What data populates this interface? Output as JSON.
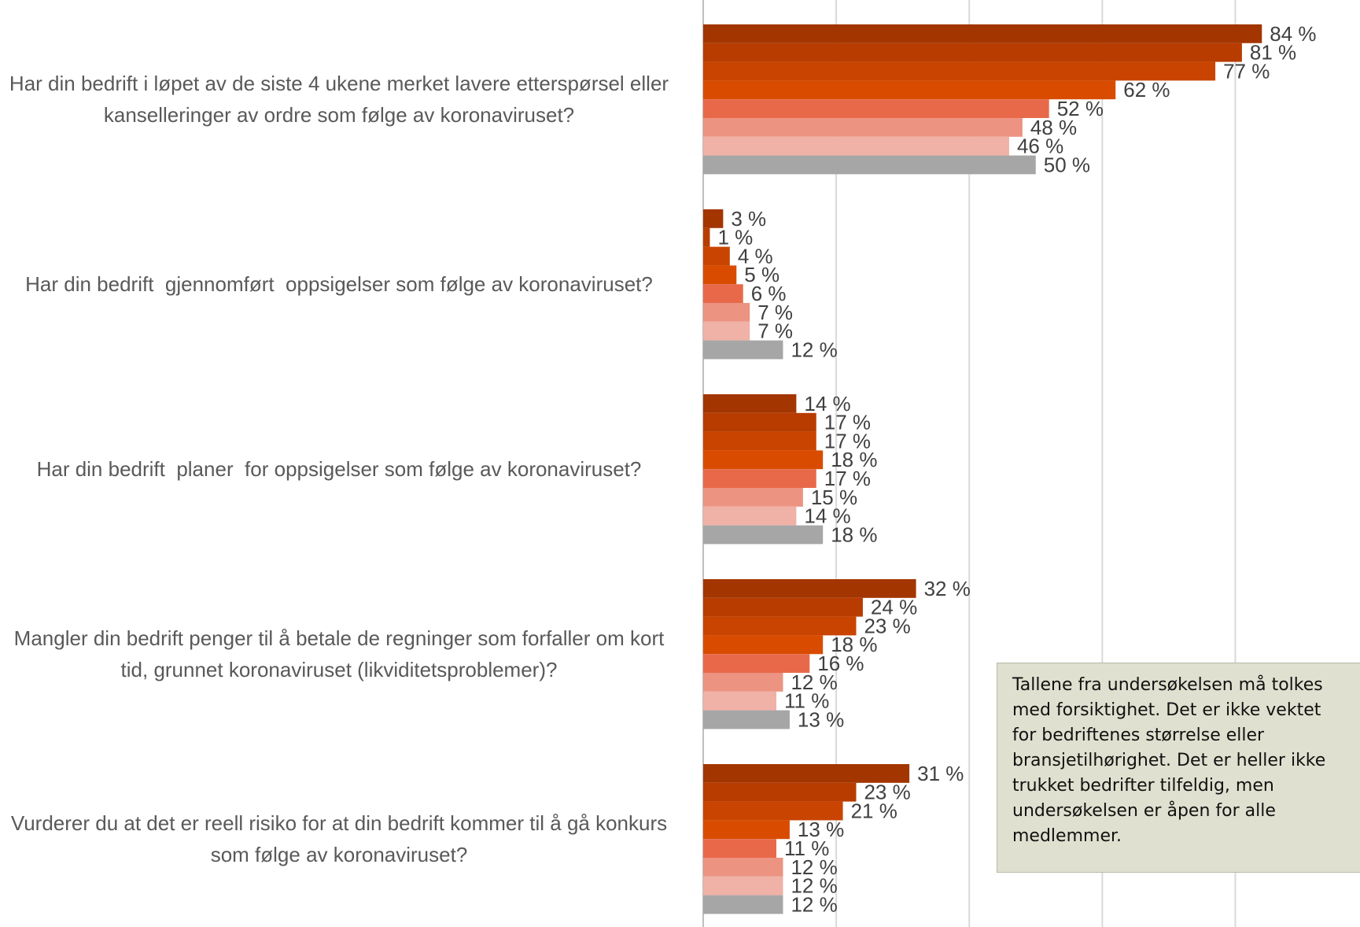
{
  "chart_data": {
    "type": "barh",
    "categories": [
      "Har din bedrift i løpet av de siste 4 ukene merket lavere etterspørsel eller kanselleringer av ordre som følge av koronaviruset?",
      "Har din bedrift  gjennomført  oppsigelser som følge av koronaviruset?",
      "Har din bedrift  planer  for oppsigelser som følge av koronaviruset?",
      "Mangler din bedrift penger til å betale de regninger som forfaller om kort tid, grunnet koronaviruset (likviditetsproblemer)?",
      "Vurderer du at det er reell risiko for at din bedrift kommer til å gå konkurs som følge av koronaviruset?"
    ],
    "series": [
      {
        "color": "#a33500",
        "values": [
          84,
          3,
          14,
          32,
          31
        ],
        "value_labels": [
          "84 %",
          "3 %",
          "14 %",
          "32 %",
          "31 %"
        ]
      },
      {
        "color": "#b83c00",
        "values": [
          81,
          1,
          17,
          24,
          23
        ],
        "value_labels": [
          "81 %",
          "1 %",
          "17 %",
          "24 %",
          "23 %"
        ]
      },
      {
        "color": "#c94400",
        "values": [
          77,
          4,
          17,
          23,
          21
        ],
        "value_labels": [
          "77 %",
          "4 %",
          "17 %",
          "23 %",
          "21 %"
        ]
      },
      {
        "color": "#d94c00",
        "values": [
          62,
          5,
          18,
          18,
          13
        ],
        "value_labels": [
          "62 %",
          "5 %",
          "18 %",
          "18 %",
          "13 %"
        ]
      },
      {
        "color": "#e8694a",
        "values": [
          52,
          6,
          17,
          16,
          11
        ],
        "value_labels": [
          "52 %",
          "6 %",
          "17 %",
          "16 %",
          "11 %"
        ]
      },
      {
        "color": "#ec9381",
        "values": [
          48,
          7,
          15,
          12,
          12
        ],
        "value_labels": [
          "48 %",
          "7 %",
          "15 %",
          "12 %",
          "12 %"
        ]
      },
      {
        "color": "#f0b1a6",
        "values": [
          46,
          7,
          14,
          11,
          12
        ],
        "value_labels": [
          "46 %",
          "7 %",
          "14 %",
          "11 %",
          "12 %"
        ]
      },
      {
        "color": "#a6a6a6",
        "values": [
          50,
          12,
          18,
          13,
          12
        ],
        "value_labels": [
          "50 %",
          "12 %",
          "18 %",
          "13 %",
          "12 %"
        ]
      }
    ],
    "xlim": [
      0,
      90
    ],
    "xticks": [
      0,
      20,
      40,
      60,
      80
    ],
    "grid": true,
    "annotation": "Tallene fra undersøkelsen må tolkes med forsiktighet. Det er ikke vektet for bedriftenes størrelse eller bransjetilhørighet. Det er heller ikke trukket bedrifter tilfeldig, men undersøkelsen er åpen for alle medlemmer."
  }
}
